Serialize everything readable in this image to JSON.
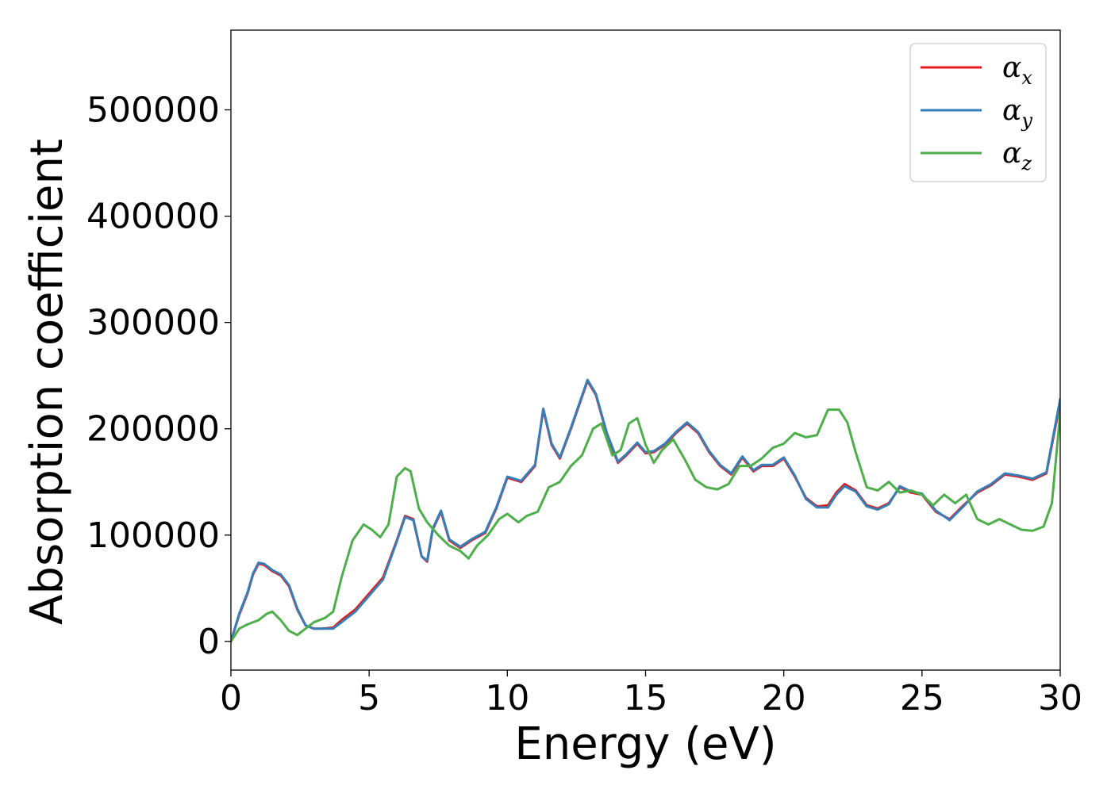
{
  "chart_data": {
    "type": "line",
    "title": "",
    "xlabel": "Energy (eV)",
    "ylabel": "Absorption coefficient",
    "xlim": [
      0,
      30
    ],
    "ylim": [
      -27000,
      575000
    ],
    "xticks": [
      0,
      5,
      10,
      15,
      20,
      25,
      30
    ],
    "yticks": [
      0,
      100000,
      200000,
      300000,
      400000,
      500000
    ],
    "grid": false,
    "legend_position": "top-right",
    "series": [
      {
        "name": "αx",
        "base": "α",
        "sub": "x",
        "color": "#e41a1c",
        "x": [
          0,
          0.3,
          0.6,
          0.8,
          1.0,
          1.2,
          1.5,
          1.8,
          2.1,
          2.4,
          2.7,
          3.0,
          3.3,
          3.7,
          4.0,
          4.5,
          5.0,
          5.5,
          6.0,
          6.3,
          6.6,
          6.9,
          7.1,
          7.3,
          7.6,
          7.9,
          8.3,
          8.7,
          9.2,
          9.6,
          10.0,
          10.5,
          11.0,
          11.3,
          11.6,
          11.9,
          12.3,
          12.9,
          13.2,
          13.6,
          14.0,
          14.3,
          14.7,
          15.0,
          15.3,
          15.7,
          16.1,
          16.5,
          16.9,
          17.3,
          17.7,
          18.1,
          18.5,
          18.9,
          19.2,
          19.6,
          20.0,
          20.4,
          20.8,
          21.2,
          21.6,
          21.9,
          22.2,
          22.6,
          23.0,
          23.4,
          23.8,
          24.2,
          24.6,
          25.0,
          25.5,
          26.0,
          26.5,
          27.0,
          27.5,
          28.0,
          28.5,
          29.0,
          29.5,
          30.0
        ],
        "y": [
          0,
          25000,
          45000,
          63000,
          73000,
          72000,
          66000,
          62000,
          52000,
          30000,
          15000,
          12000,
          12000,
          13000,
          20000,
          30000,
          45000,
          60000,
          95000,
          118000,
          115000,
          80000,
          75000,
          105000,
          122000,
          95000,
          88000,
          95000,
          102000,
          125000,
          154000,
          150000,
          165000,
          218000,
          185000,
          172000,
          200000,
          245000,
          232000,
          195000,
          168000,
          175000,
          186000,
          177000,
          178000,
          185000,
          196000,
          205000,
          196000,
          178000,
          165000,
          157000,
          173000,
          160000,
          165000,
          165000,
          172000,
          155000,
          135000,
          127000,
          128000,
          140000,
          148000,
          142000,
          128000,
          125000,
          130000,
          145000,
          140000,
          138000,
          122000,
          115000,
          128000,
          140000,
          147000,
          157000,
          155000,
          152000,
          158000,
          225000
        ]
      },
      {
        "name": "αy",
        "base": "α",
        "sub": "y",
        "color": "#377eb8",
        "x": [
          0,
          0.3,
          0.6,
          0.8,
          1.0,
          1.2,
          1.5,
          1.8,
          2.1,
          2.4,
          2.7,
          3.0,
          3.3,
          3.7,
          4.0,
          4.5,
          5.0,
          5.5,
          6.0,
          6.3,
          6.6,
          6.9,
          7.1,
          7.3,
          7.6,
          7.9,
          8.3,
          8.7,
          9.2,
          9.6,
          10.0,
          10.5,
          11.0,
          11.3,
          11.6,
          11.9,
          12.3,
          12.9,
          13.2,
          13.6,
          14.0,
          14.3,
          14.7,
          15.0,
          15.3,
          15.7,
          16.1,
          16.5,
          16.9,
          17.3,
          17.7,
          18.1,
          18.5,
          18.9,
          19.2,
          19.6,
          20.0,
          20.4,
          20.8,
          21.2,
          21.6,
          21.9,
          22.2,
          22.6,
          23.0,
          23.4,
          23.8,
          24.2,
          24.6,
          25.0,
          25.5,
          26.0,
          26.5,
          27.0,
          27.5,
          28.0,
          28.5,
          29.0,
          29.5,
          30.0
        ],
        "y": [
          0,
          26000,
          46000,
          64000,
          74000,
          73000,
          67000,
          63000,
          53000,
          31000,
          15000,
          12000,
          12000,
          12000,
          18000,
          28000,
          43000,
          58000,
          94000,
          117000,
          114000,
          80000,
          76000,
          106000,
          123000,
          96000,
          89000,
          96000,
          103000,
          126000,
          155000,
          151000,
          166000,
          219000,
          186000,
          173000,
          201000,
          246000,
          233000,
          196000,
          169000,
          176000,
          187000,
          178000,
          179000,
          186000,
          197000,
          206000,
          197000,
          179000,
          166000,
          158000,
          174000,
          161000,
          166000,
          166000,
          173000,
          156000,
          134000,
          126000,
          126000,
          138000,
          146000,
          141000,
          127000,
          124000,
          129000,
          146000,
          141000,
          139000,
          123000,
          114000,
          127000,
          141000,
          148000,
          158000,
          156000,
          153000,
          159000,
          228000
        ]
      },
      {
        "name": "αz",
        "base": "α",
        "sub": "z",
        "color": "#4daf4a",
        "x": [
          0,
          0.3,
          0.6,
          1.0,
          1.3,
          1.5,
          1.8,
          2.1,
          2.4,
          2.7,
          3.0,
          3.4,
          3.7,
          4.0,
          4.4,
          4.8,
          5.1,
          5.4,
          5.7,
          6.0,
          6.3,
          6.5,
          6.8,
          7.1,
          7.5,
          7.9,
          8.3,
          8.6,
          8.9,
          9.3,
          9.7,
          10.0,
          10.4,
          10.7,
          11.1,
          11.5,
          11.9,
          12.3,
          12.7,
          13.1,
          13.4,
          13.8,
          14.1,
          14.4,
          14.7,
          15.0,
          15.3,
          15.6,
          16.0,
          16.4,
          16.8,
          17.2,
          17.6,
          18.0,
          18.4,
          18.8,
          19.2,
          19.6,
          20.0,
          20.4,
          20.8,
          21.2,
          21.6,
          22.0,
          22.3,
          22.6,
          23.0,
          23.4,
          23.8,
          24.2,
          24.6,
          25.0,
          25.4,
          25.8,
          26.2,
          26.6,
          27.0,
          27.4,
          27.8,
          28.2,
          28.6,
          29.0,
          29.4,
          29.7,
          30.0
        ],
        "y": [
          0,
          12000,
          16000,
          20000,
          26000,
          28000,
          20000,
          10000,
          6000,
          12000,
          18000,
          22000,
          28000,
          60000,
          95000,
          110000,
          105000,
          98000,
          110000,
          155000,
          163000,
          160000,
          125000,
          112000,
          100000,
          90000,
          85000,
          78000,
          90000,
          100000,
          115000,
          120000,
          112000,
          118000,
          122000,
          145000,
          150000,
          165000,
          175000,
          200000,
          205000,
          175000,
          180000,
          205000,
          210000,
          185000,
          168000,
          180000,
          190000,
          172000,
          152000,
          145000,
          143000,
          148000,
          165000,
          165000,
          172000,
          182000,
          186000,
          196000,
          192000,
          194000,
          218000,
          218000,
          206000,
          178000,
          145000,
          142000,
          150000,
          140000,
          142000,
          138000,
          128000,
          138000,
          130000,
          138000,
          115000,
          110000,
          115000,
          110000,
          105000,
          104000,
          108000,
          130000,
          215000
        ]
      }
    ]
  }
}
